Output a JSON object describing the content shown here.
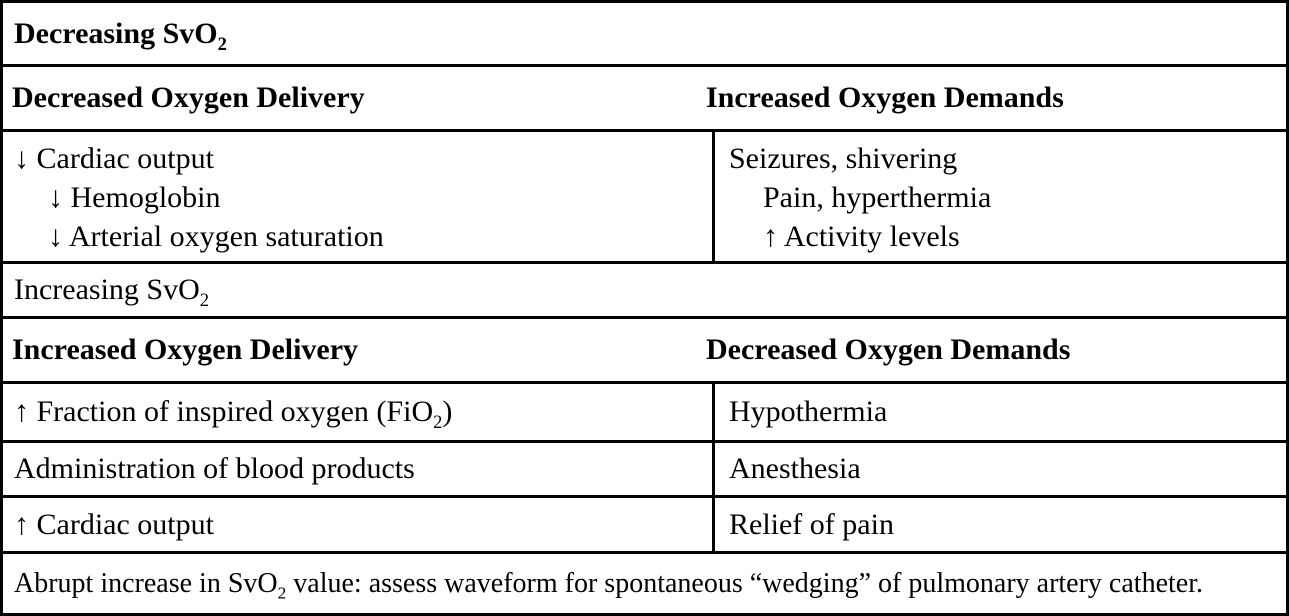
{
  "table": {
    "decreasing": {
      "banner": {
        "pre": "Decreasing SvO",
        "sub": "2"
      },
      "headers": {
        "left": "Decreased Oxygen Delivery",
        "right": "Increased Oxygen Demands"
      },
      "delivery_causes": [
        "↓ Cardiac output",
        "↓ Hemoglobin",
        "↓ Arterial oxygen saturation"
      ],
      "demand_causes": [
        "Seizures, shivering",
        "Pain, hyperthermia",
        "↑ Activity levels"
      ]
    },
    "increasing": {
      "banner": {
        "pre": "Increasing SvO",
        "sub": "2"
      },
      "headers": {
        "left": "Increased Oxygen Delivery",
        "right": "Decreased Oxygen Demands"
      },
      "rows": [
        {
          "left": {
            "pre": "↑ Fraction of inspired oxygen (FiO",
            "sub": "2",
            "post": ")"
          },
          "right": "Hypothermia"
        },
        {
          "left": {
            "pre": "Administration of blood products"
          },
          "right": "Anesthesia"
        },
        {
          "left": {
            "pre": "↑ Cardiac output"
          },
          "right": "Relief of pain"
        }
      ]
    },
    "footer": {
      "pre": "Abrupt increase in SvO",
      "sub": "2",
      "post": " value: assess waveform for spontaneous “wedging” of pulmonary artery catheter."
    },
    "colors": {
      "border": "#000000",
      "text": "#000000",
      "background": "#ffffff"
    }
  }
}
